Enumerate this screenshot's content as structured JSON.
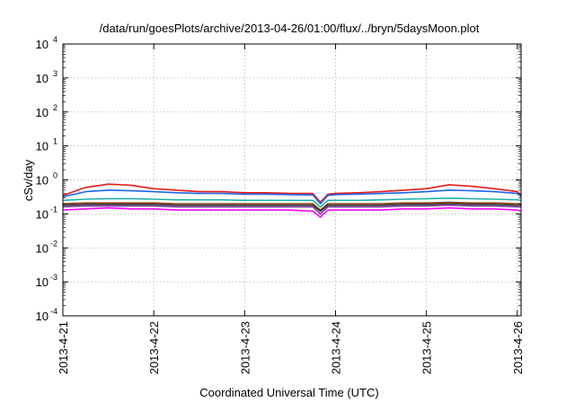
{
  "chart_data": {
    "type": "line",
    "title": "/data/run/goesPlots/archive/2013-04-26/01:00/flux/../bryn/5daysMoon.plot",
    "xlabel": "Coordinated Universal Time (UTC)",
    "ylabel": "cSv/day",
    "yscale": "log",
    "ylim": [
      0.0001,
      10000
    ],
    "xlim": [
      "2013-04-21",
      "2013-04-26 01:00"
    ],
    "grid": true,
    "legend": "none",
    "y_ticks": [
      {
        "base": "10",
        "exp": "-4",
        "value": 0.0001
      },
      {
        "base": "10",
        "exp": "-3",
        "value": 0.001
      },
      {
        "base": "10",
        "exp": "-2",
        "value": 0.01
      },
      {
        "base": "10",
        "exp": "-1",
        "value": 0.1
      },
      {
        "base": "10",
        "exp": "0",
        "value": 1
      },
      {
        "base": "10",
        "exp": "1",
        "value": 10
      },
      {
        "base": "10",
        "exp": "2",
        "value": 100
      },
      {
        "base": "10",
        "exp": "3",
        "value": 1000
      },
      {
        "base": "10",
        "exp": "4",
        "value": 10000
      }
    ],
    "x_ticks": [
      "2013-4-21",
      "2013-4-22",
      "2013-4-23",
      "2013-4-24",
      "2013-4-25",
      "2013-4-26"
    ],
    "x": [
      "2013-04-21 00:00",
      "2013-04-21 06:00",
      "2013-04-21 12:00",
      "2013-04-21 18:00",
      "2013-04-22 00:00",
      "2013-04-22 06:00",
      "2013-04-22 12:00",
      "2013-04-22 18:00",
      "2013-04-23 00:00",
      "2013-04-23 06:00",
      "2013-04-23 12:00",
      "2013-04-23 18:00",
      "2013-04-23 20:00",
      "2013-04-23 22:00",
      "2013-04-24 00:00",
      "2013-04-24 06:00",
      "2013-04-24 12:00",
      "2013-04-24 18:00",
      "2013-04-25 00:00",
      "2013-04-25 06:00",
      "2013-04-25 12:00",
      "2013-04-25 18:00",
      "2013-04-26 00:00",
      "2013-04-26 01:00"
    ],
    "series": [
      {
        "color": "#e41a1c",
        "values": [
          0.35,
          0.6,
          0.75,
          0.7,
          0.55,
          0.5,
          0.45,
          0.45,
          0.42,
          0.42,
          0.4,
          0.4,
          0.22,
          0.38,
          0.4,
          0.42,
          0.45,
          0.5,
          0.55,
          0.72,
          0.65,
          0.55,
          0.45,
          0.35
        ]
      },
      {
        "color": "#1e66e8",
        "values": [
          0.32,
          0.45,
          0.5,
          0.48,
          0.45,
          0.42,
          0.4,
          0.4,
          0.38,
          0.38,
          0.37,
          0.36,
          0.2,
          0.35,
          0.37,
          0.38,
          0.4,
          0.42,
          0.45,
          0.5,
          0.48,
          0.45,
          0.4,
          0.32
        ]
      },
      {
        "color": "#20b2aa",
        "values": [
          0.25,
          0.27,
          0.28,
          0.28,
          0.27,
          0.26,
          0.26,
          0.26,
          0.25,
          0.25,
          0.25,
          0.25,
          0.16,
          0.25,
          0.25,
          0.25,
          0.26,
          0.27,
          0.28,
          0.29,
          0.28,
          0.27,
          0.26,
          0.25
        ]
      },
      {
        "color": "#8b4513",
        "values": [
          0.2,
          0.21,
          0.21,
          0.21,
          0.21,
          0.2,
          0.2,
          0.2,
          0.2,
          0.2,
          0.2,
          0.2,
          0.13,
          0.2,
          0.2,
          0.2,
          0.2,
          0.21,
          0.21,
          0.22,
          0.21,
          0.21,
          0.2,
          0.2
        ]
      },
      {
        "color": "#333333",
        "values": [
          0.18,
          0.19,
          0.19,
          0.19,
          0.19,
          0.18,
          0.18,
          0.18,
          0.18,
          0.18,
          0.18,
          0.18,
          0.12,
          0.18,
          0.18,
          0.18,
          0.18,
          0.19,
          0.19,
          0.2,
          0.19,
          0.19,
          0.18,
          0.18
        ]
      },
      {
        "color": "#7a3fa0",
        "values": [
          0.16,
          0.17,
          0.17,
          0.17,
          0.17,
          0.16,
          0.16,
          0.16,
          0.16,
          0.16,
          0.16,
          0.16,
          0.1,
          0.16,
          0.16,
          0.16,
          0.16,
          0.17,
          0.17,
          0.18,
          0.17,
          0.17,
          0.16,
          0.16
        ]
      },
      {
        "color": "#ff00ff",
        "values": [
          0.13,
          0.14,
          0.15,
          0.14,
          0.14,
          0.13,
          0.13,
          0.13,
          0.13,
          0.13,
          0.13,
          0.12,
          0.08,
          0.13,
          0.13,
          0.13,
          0.13,
          0.14,
          0.14,
          0.15,
          0.14,
          0.14,
          0.13,
          0.12
        ]
      }
    ]
  }
}
